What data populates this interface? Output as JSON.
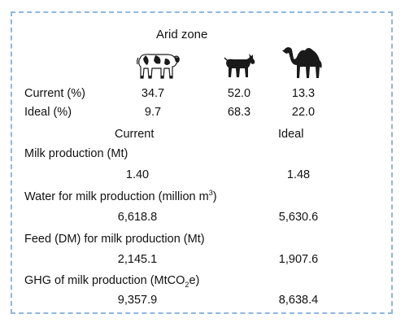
{
  "title": "Arid zone",
  "icons": [
    "cow-icon",
    "goat-icon",
    "camel-icon"
  ],
  "share_table": {
    "rows": [
      {
        "label": "Current (%)",
        "values": [
          "34.7",
          "52.0",
          "13.3"
        ]
      },
      {
        "label": "Ideal (%)",
        "values": [
          "9.7",
          "68.3",
          "22.0"
        ]
      }
    ]
  },
  "columns": {
    "current": "Current",
    "ideal": "Ideal"
  },
  "metrics": {
    "milk": {
      "label": "Milk production (Mt)",
      "current": "1.40",
      "ideal": "1.48"
    },
    "water": {
      "label_main": "Water for milk production (million m",
      "label_sup": "3",
      "label_end": ")",
      "current": "6,618.8",
      "ideal": "5,630.6"
    },
    "feed": {
      "label": "Feed (DM) for milk production (Mt)",
      "current": "2,145.1",
      "ideal": "1,907.6"
    },
    "ghg": {
      "label_main": "GHG of milk production (MtCO",
      "label_sub": "2",
      "label_end": "e)",
      "current": "9,357.9",
      "ideal": "8,638.4"
    }
  },
  "colors": {
    "border": "#8fb7e0",
    "text": "#111111",
    "animal": "#1a1a1a"
  }
}
